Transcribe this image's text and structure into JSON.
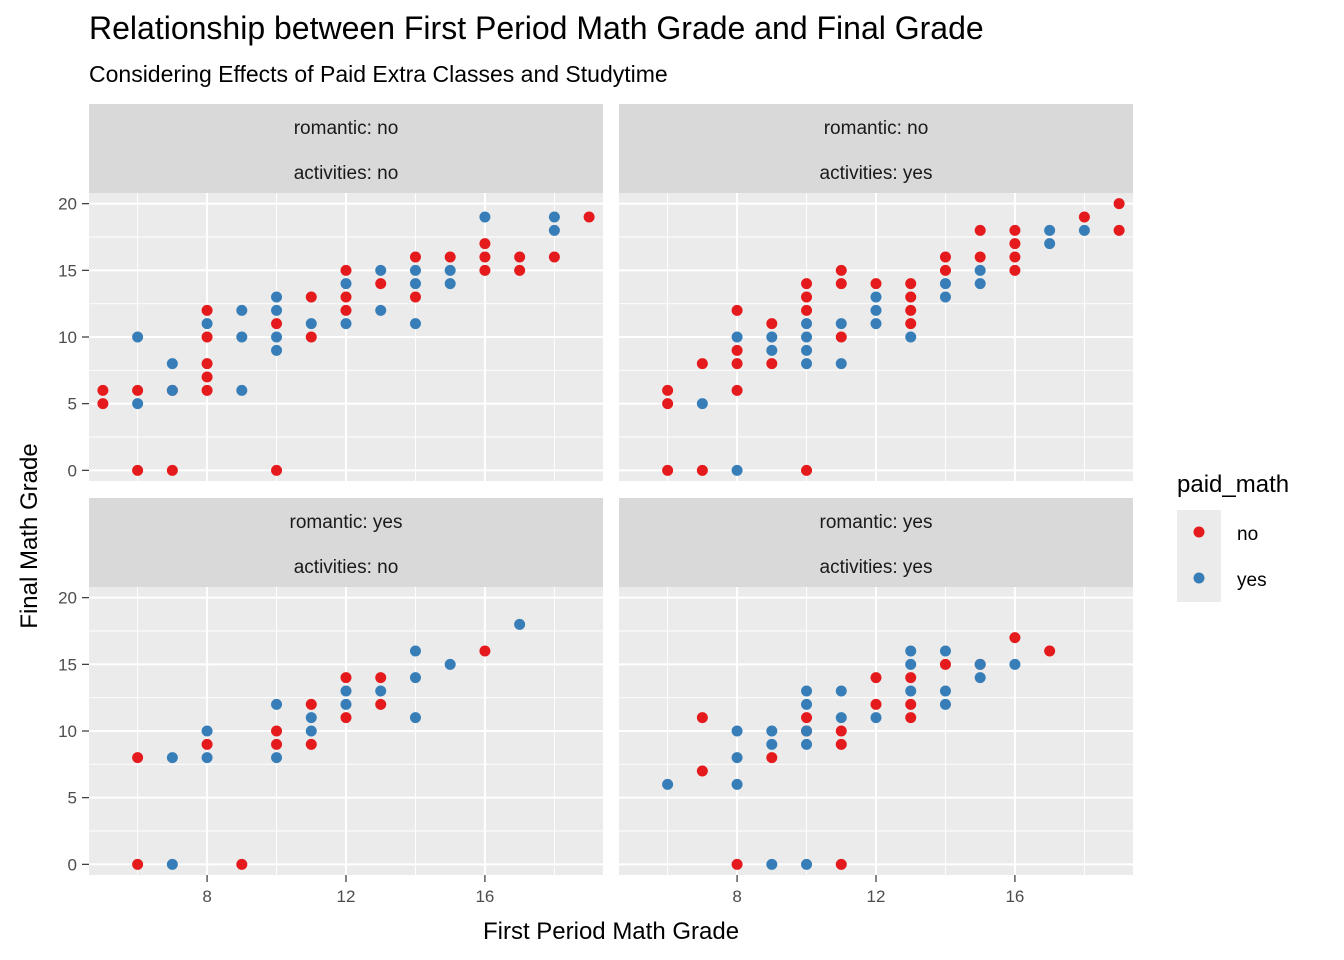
{
  "chart_data": {
    "type": "scatter",
    "title": "Relationship between First Period Math Grade and Final Grade",
    "subtitle": "Considering Effects of Paid Extra Classes and Studytime",
    "xlabel": "First Period Math Grade",
    "ylabel": "Final Math Grade",
    "xlim": [
      4.6,
      19.4
    ],
    "ylim": [
      -0.8,
      20.8
    ],
    "x_ticks": [
      8,
      12,
      16
    ],
    "y_ticks": [
      0,
      5,
      10,
      15,
      20
    ],
    "grid": true,
    "legend": {
      "title": "paid_math",
      "position": "right",
      "entries": [
        {
          "label": "no",
          "color": "#E41A1C"
        },
        {
          "label": "yes",
          "color": "#377EB8"
        }
      ]
    },
    "colors": {
      "no": "#E41A1C",
      "yes": "#377EB8"
    },
    "panels": [
      {
        "strip": [
          "romantic: no",
          "activities: no"
        ],
        "series": [
          {
            "name": "no",
            "points": [
              [
                5,
                6
              ],
              [
                5,
                5
              ],
              [
                6,
                6
              ],
              [
                6,
                0
              ],
              [
                7,
                6
              ],
              [
                7,
                0
              ],
              [
                8,
                12
              ],
              [
                8,
                10
              ],
              [
                8,
                8
              ],
              [
                8,
                7
              ],
              [
                8,
                6
              ],
              [
                10,
                11
              ],
              [
                10,
                0
              ],
              [
                11,
                13
              ],
              [
                11,
                10
              ],
              [
                12,
                15
              ],
              [
                12,
                13
              ],
              [
                12,
                12
              ],
              [
                13,
                14
              ],
              [
                14,
                16
              ],
              [
                14,
                13
              ],
              [
                15,
                16
              ],
              [
                16,
                17
              ],
              [
                16,
                16
              ],
              [
                16,
                15
              ],
              [
                17,
                16
              ],
              [
                17,
                15
              ],
              [
                18,
                16
              ],
              [
                19,
                19
              ]
            ]
          },
          {
            "name": "yes",
            "points": [
              [
                6,
                10
              ],
              [
                6,
                5
              ],
              [
                7,
                8
              ],
              [
                7,
                6
              ],
              [
                8,
                11
              ],
              [
                9,
                12
              ],
              [
                9,
                10
              ],
              [
                9,
                6
              ],
              [
                10,
                13
              ],
              [
                10,
                12
              ],
              [
                10,
                10
              ],
              [
                10,
                9
              ],
              [
                11,
                11
              ],
              [
                12,
                14
              ],
              [
                12,
                11
              ],
              [
                13,
                15
              ],
              [
                13,
                12
              ],
              [
                14,
                15
              ],
              [
                14,
                14
              ],
              [
                14,
                11
              ],
              [
                15,
                15
              ],
              [
                15,
                14
              ],
              [
                16,
                19
              ],
              [
                18,
                19
              ],
              [
                18,
                18
              ]
            ]
          }
        ]
      },
      {
        "strip": [
          "romantic: no",
          "activities: yes"
        ],
        "series": [
          {
            "name": "no",
            "points": [
              [
                6,
                6
              ],
              [
                6,
                5
              ],
              [
                6,
                0
              ],
              [
                7,
                8
              ],
              [
                7,
                0
              ],
              [
                8,
                12
              ],
              [
                8,
                9
              ],
              [
                8,
                8
              ],
              [
                8,
                6
              ],
              [
                9,
                11
              ],
              [
                9,
                8
              ],
              [
                10,
                14
              ],
              [
                10,
                13
              ],
              [
                10,
                12
              ],
              [
                10,
                0
              ],
              [
                11,
                15
              ],
              [
                11,
                14
              ],
              [
                11,
                10
              ],
              [
                12,
                14
              ],
              [
                13,
                14
              ],
              [
                13,
                13
              ],
              [
                13,
                12
              ],
              [
                13,
                11
              ],
              [
                14,
                16
              ],
              [
                14,
                15
              ],
              [
                15,
                18
              ],
              [
                15,
                16
              ],
              [
                16,
                18
              ],
              [
                16,
                17
              ],
              [
                16,
                16
              ],
              [
                16,
                15
              ],
              [
                18,
                19
              ],
              [
                19,
                20
              ],
              [
                19,
                18
              ]
            ]
          },
          {
            "name": "yes",
            "points": [
              [
                7,
                5
              ],
              [
                8,
                10
              ],
              [
                8,
                0
              ],
              [
                9,
                10
              ],
              [
                9,
                9
              ],
              [
                10,
                11
              ],
              [
                10,
                10
              ],
              [
                10,
                9
              ],
              [
                10,
                8
              ],
              [
                11,
                11
              ],
              [
                11,
                8
              ],
              [
                12,
                13
              ],
              [
                12,
                12
              ],
              [
                12,
                11
              ],
              [
                13,
                10
              ],
              [
                14,
                14
              ],
              [
                14,
                13
              ],
              [
                15,
                15
              ],
              [
                15,
                14
              ],
              [
                17,
                18
              ],
              [
                17,
                17
              ],
              [
                18,
                18
              ]
            ]
          }
        ]
      },
      {
        "strip": [
          "romantic: yes",
          "activities: no"
        ],
        "series": [
          {
            "name": "no",
            "points": [
              [
                6,
                8
              ],
              [
                6,
                0
              ],
              [
                8,
                9
              ],
              [
                9,
                0
              ],
              [
                10,
                10
              ],
              [
                10,
                9
              ],
              [
                11,
                12
              ],
              [
                11,
                9
              ],
              [
                12,
                14
              ],
              [
                12,
                11
              ],
              [
                13,
                14
              ],
              [
                13,
                12
              ],
              [
                16,
                16
              ]
            ]
          },
          {
            "name": "yes",
            "points": [
              [
                7,
                8
              ],
              [
                7,
                0
              ],
              [
                8,
                10
              ],
              [
                8,
                8
              ],
              [
                10,
                12
              ],
              [
                10,
                8
              ],
              [
                11,
                11
              ],
              [
                11,
                10
              ],
              [
                12,
                13
              ],
              [
                12,
                12
              ],
              [
                13,
                13
              ],
              [
                14,
                16
              ],
              [
                14,
                14
              ],
              [
                14,
                11
              ],
              [
                15,
                15
              ],
              [
                17,
                18
              ]
            ]
          }
        ]
      },
      {
        "strip": [
          "romantic: yes",
          "activities: yes"
        ],
        "series": [
          {
            "name": "no",
            "points": [
              [
                7,
                11
              ],
              [
                7,
                7
              ],
              [
                8,
                0
              ],
              [
                9,
                8
              ],
              [
                10,
                11
              ],
              [
                10,
                10
              ],
              [
                11,
                10
              ],
              [
                11,
                9
              ],
              [
                11,
                0
              ],
              [
                12,
                14
              ],
              [
                12,
                12
              ],
              [
                13,
                14
              ],
              [
                13,
                12
              ],
              [
                13,
                11
              ],
              [
                14,
                15
              ],
              [
                15,
                15
              ],
              [
                16,
                17
              ],
              [
                17,
                16
              ]
            ]
          },
          {
            "name": "yes",
            "points": [
              [
                6,
                6
              ],
              [
                8,
                10
              ],
              [
                8,
                8
              ],
              [
                8,
                6
              ],
              [
                9,
                10
              ],
              [
                9,
                9
              ],
              [
                9,
                0
              ],
              [
                10,
                13
              ],
              [
                10,
                12
              ],
              [
                10,
                10
              ],
              [
                10,
                9
              ],
              [
                10,
                0
              ],
              [
                11,
                13
              ],
              [
                11,
                11
              ],
              [
                12,
                11
              ],
              [
                13,
                16
              ],
              [
                13,
                15
              ],
              [
                13,
                13
              ],
              [
                14,
                16
              ],
              [
                14,
                13
              ],
              [
                14,
                12
              ],
              [
                15,
                15
              ],
              [
                15,
                14
              ],
              [
                16,
                15
              ]
            ]
          }
        ]
      }
    ]
  }
}
